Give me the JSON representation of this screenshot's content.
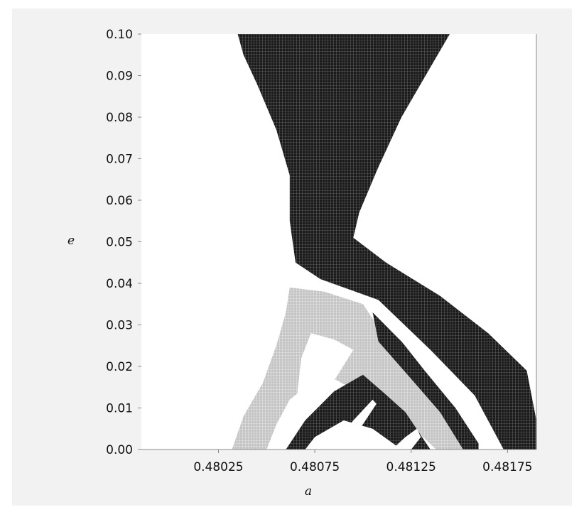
{
  "chart_data": {
    "type": "scatter",
    "title": "",
    "xlabel": "a",
    "ylabel": "e",
    "xlim": [
      0.47985,
      0.4819
    ],
    "ylim": [
      0,
      0.1
    ],
    "x_ticks": [
      {
        "value": 0.48025,
        "label": "0.48025"
      },
      {
        "value": 0.48075,
        "label": "0.48075"
      },
      {
        "value": 0.48125,
        "label": "0.48125"
      },
      {
        "value": 0.48175,
        "label": "0.48175"
      }
    ],
    "y_ticks": [
      {
        "value": 0.0,
        "label": "0.00"
      },
      {
        "value": 0.01,
        "label": "0.01"
      },
      {
        "value": 0.02,
        "label": "0.02"
      },
      {
        "value": 0.03,
        "label": "0.03"
      },
      {
        "value": 0.04,
        "label": "0.04"
      },
      {
        "value": 0.05,
        "label": "0.05"
      },
      {
        "value": 0.06,
        "label": "0.06"
      },
      {
        "value": 0.07,
        "label": "0.07"
      },
      {
        "value": 0.08,
        "label": "0.08"
      },
      {
        "value": 0.09,
        "label": "0.09"
      },
      {
        "value": 0.1,
        "label": "0.10"
      }
    ],
    "grid": false,
    "legend": "none",
    "colors": {
      "dark_points": "#1a1a1a",
      "light_points": "#c4c4c4",
      "background": "#f2f2f2",
      "plot_area": "#ffffff"
    },
    "regions": [
      {
        "shade": "dark",
        "boundary": [
          [
            0.48035,
            0.1
          ],
          [
            0.48145,
            0.1
          ],
          [
            0.48135,
            0.092
          ],
          [
            0.4812,
            0.08
          ],
          [
            0.48108,
            0.068
          ],
          [
            0.48098,
            0.057
          ],
          [
            0.48095,
            0.051
          ],
          [
            0.48112,
            0.045
          ],
          [
            0.4814,
            0.037
          ],
          [
            0.48165,
            0.028
          ],
          [
            0.48185,
            0.019
          ],
          [
            0.4819,
            0.007
          ],
          [
            0.4819,
            0.0
          ],
          [
            0.48173,
            0.0
          ],
          [
            0.48158,
            0.013
          ],
          [
            0.48135,
            0.024
          ],
          [
            0.48108,
            0.036
          ],
          [
            0.48078,
            0.041
          ],
          [
            0.48065,
            0.045
          ],
          [
            0.48062,
            0.055
          ],
          [
            0.48062,
            0.066
          ],
          [
            0.48055,
            0.077
          ],
          [
            0.48045,
            0.088
          ],
          [
            0.48038,
            0.095
          ]
        ]
      },
      {
        "shade": "light",
        "boundary": [
          [
            0.48062,
            0.039
          ],
          [
            0.4808,
            0.038
          ],
          [
            0.481,
            0.035
          ],
          [
            0.4811,
            0.028
          ],
          [
            0.4812,
            0.022
          ],
          [
            0.4813,
            0.017
          ],
          [
            0.4814,
            0.013
          ],
          [
            0.48155,
            0.007
          ],
          [
            0.4816,
            0.0
          ],
          [
            0.48138,
            0.0
          ],
          [
            0.48122,
            0.007
          ],
          [
            0.48105,
            0.012
          ],
          [
            0.48085,
            0.017
          ],
          [
            0.4807,
            0.015
          ],
          [
            0.48062,
            0.012
          ],
          [
            0.48055,
            0.006
          ],
          [
            0.4805,
            0.0
          ],
          [
            0.48032,
            0.0
          ],
          [
            0.48038,
            0.008
          ],
          [
            0.48048,
            0.016
          ],
          [
            0.48055,
            0.025
          ],
          [
            0.4806,
            0.033
          ]
        ]
      },
      {
        "shade": "dark",
        "boundary": [
          [
            0.4806,
            0.0
          ],
          [
            0.4807,
            0.007
          ],
          [
            0.48085,
            0.014
          ],
          [
            0.481,
            0.018
          ],
          [
            0.4811,
            0.014
          ],
          [
            0.48122,
            0.009
          ],
          [
            0.48135,
            0.0
          ],
          [
            0.4812,
            0.0
          ],
          [
            0.48105,
            0.005
          ],
          [
            0.4809,
            0.007
          ],
          [
            0.48075,
            0.003
          ],
          [
            0.4807,
            0.0
          ]
        ]
      },
      {
        "shade": "dark",
        "boundary": [
          [
            0.48105,
            0.033
          ],
          [
            0.4812,
            0.026
          ],
          [
            0.48135,
            0.018
          ],
          [
            0.4815,
            0.01
          ],
          [
            0.4816,
            0.003
          ],
          [
            0.4816,
            0.0
          ],
          [
            0.48152,
            0.0
          ],
          [
            0.4814,
            0.009
          ],
          [
            0.48125,
            0.017
          ],
          [
            0.48108,
            0.026
          ]
        ]
      },
      {
        "shade": "white",
        "boundary": [
          [
            0.48073,
            0.028
          ],
          [
            0.48085,
            0.0265
          ],
          [
            0.48095,
            0.024
          ],
          [
            0.48087,
            0.018
          ],
          [
            0.48075,
            0.01
          ],
          [
            0.48068,
            0.009
          ],
          [
            0.48066,
            0.014
          ],
          [
            0.48068,
            0.022
          ]
        ]
      },
      {
        "shade": "white",
        "boundary": [
          [
            0.48112,
            0.033
          ],
          [
            0.48122,
            0.027
          ],
          [
            0.48138,
            0.019
          ],
          [
            0.48155,
            0.011
          ],
          [
            0.48168,
            0.002
          ],
          [
            0.48168,
            0.0
          ],
          [
            0.48162,
            0.0
          ],
          [
            0.48148,
            0.01
          ],
          [
            0.48132,
            0.019
          ],
          [
            0.48115,
            0.029
          ]
        ]
      },
      {
        "shade": "white",
        "boundary": [
          [
            0.48083,
            0.0
          ],
          [
            0.48095,
            0.007
          ],
          [
            0.48105,
            0.012
          ],
          [
            0.48107,
            0.011
          ],
          [
            0.48097,
            0.004
          ],
          [
            0.4809,
            0.0
          ]
        ]
      },
      {
        "shade": "white",
        "boundary": [
          [
            0.48115,
            0.0
          ],
          [
            0.48122,
            0.003
          ],
          [
            0.48128,
            0.005
          ],
          [
            0.4813,
            0.003
          ],
          [
            0.48125,
            0.0
          ]
        ]
      }
    ]
  }
}
